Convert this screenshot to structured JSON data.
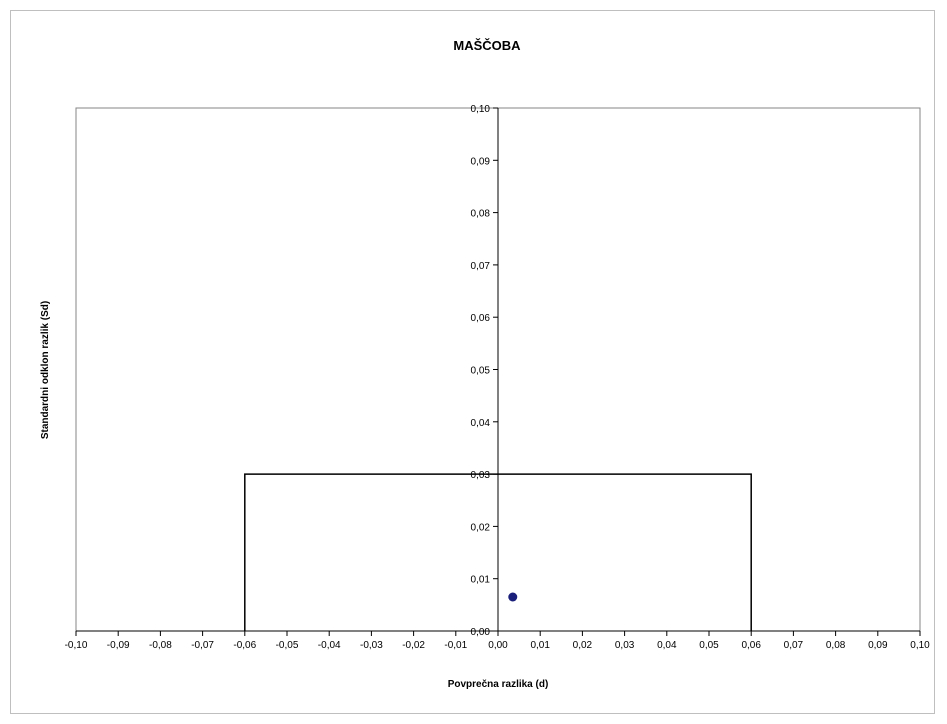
{
  "chart_data": {
    "type": "scatter",
    "title": "MAŠČOBA",
    "xlabel": "Povprečna razlika (d)",
    "ylabel": "Standardni odklon razlik (Sd)",
    "xlim": [
      -0.1,
      0.1
    ],
    "ylim": [
      0.0,
      0.1
    ],
    "x_ticks": [
      "-0,10",
      "-0,09",
      "-0,08",
      "-0,07",
      "-0,06",
      "-0,05",
      "-0,04",
      "-0,03",
      "-0,02",
      "-0,01",
      "0,00",
      "0,01",
      "0,02",
      "0,03",
      "0,04",
      "0,05",
      "0,06",
      "0,07",
      "0,08",
      "0,09",
      "0,10"
    ],
    "y_ticks": [
      "0,00",
      "0,01",
      "0,02",
      "0,03",
      "0,04",
      "0,05",
      "0,06",
      "0,07",
      "0,08",
      "0,09",
      "0,10"
    ],
    "grid": false,
    "points": [
      {
        "x": 0.0035,
        "y": 0.0065
      }
    ],
    "limit_box": {
      "x_min": -0.06,
      "x_max": 0.06,
      "y_max": 0.03
    },
    "colors": {
      "point": "#1a1f7a",
      "lines": "#000000",
      "frame": "#bfbfbf"
    }
  }
}
